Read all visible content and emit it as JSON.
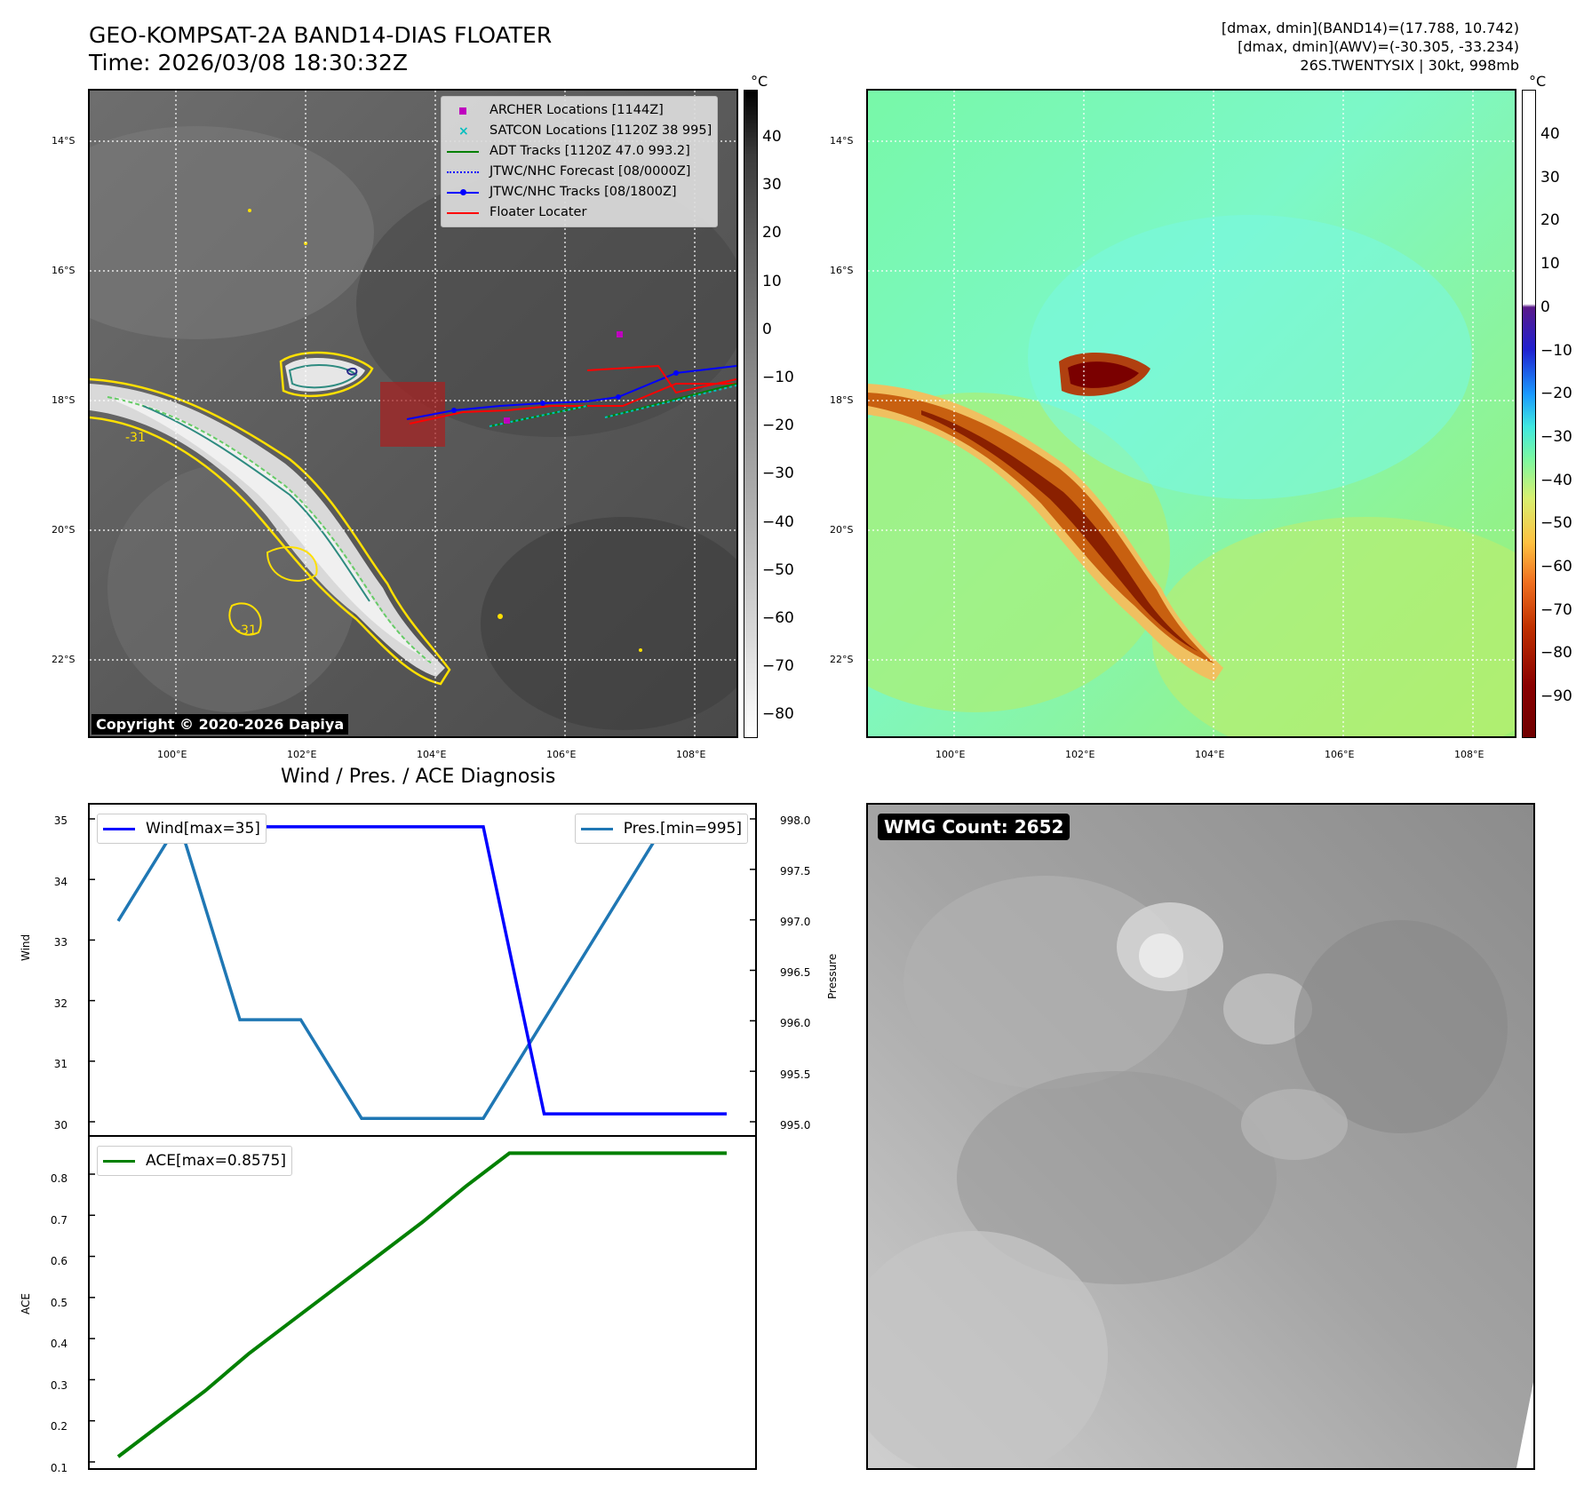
{
  "header": {
    "title_line1": "GEO-KOMPSAT-2A BAND14-DIAS FLOATER",
    "title_line2": "Time: 2026/03/08 18:30:32Z",
    "stats_line1": "[dmax, dmin](BAND14)=(17.788, 10.742)",
    "stats_line2": "[dmax, dmin](AWV)=(-30.305, -33.234)",
    "stats_line3": "26S.TWENTYSIX | 30kt, 998mb"
  },
  "map": {
    "lat_labels": [
      "14°S",
      "16°S",
      "18°S",
      "20°S",
      "22°S"
    ],
    "lon_labels": [
      "100°E",
      "102°E",
      "104°E",
      "106°E",
      "108°E"
    ],
    "copyright": "Copyright © 2020-2026 Dapiya",
    "colorbar_unit": "°C",
    "colorbar_ticks_ir": [
      "40",
      "30",
      "20",
      "10",
      "0",
      "−10",
      "−20",
      "−30",
      "−40",
      "−50",
      "−60",
      "−70",
      "−80"
    ],
    "colorbar_ticks_wv": [
      "40",
      "30",
      "20",
      "10",
      "0",
      "−10",
      "−20",
      "−30",
      "−40",
      "−50",
      "−60",
      "−70",
      "−80",
      "−90"
    ],
    "contour_label_1": "-31",
    "contour_label_2": "-31",
    "legend": [
      {
        "label": "ARCHER Locations [1144Z]",
        "color": "#bf00bf",
        "kind": "square"
      },
      {
        "label": "SATCON Locations [1120Z 38 995]",
        "color": "#00bfbf",
        "kind": "x"
      },
      {
        "label": "ADT Tracks [1120Z 47.0 993.2]",
        "color": "#008000",
        "kind": "line"
      },
      {
        "label": "JTWC/NHC Forecast [08/0000Z]",
        "color": "#0000ff",
        "kind": "dotted"
      },
      {
        "label": "JTWC/NHC Tracks [08/1800Z]",
        "color": "#0000ff",
        "kind": "line-dot"
      },
      {
        "label": "Floater Locater",
        "color": "#ff0000",
        "kind": "line"
      }
    ]
  },
  "diag": {
    "title": "Wind / Pres. / ACE Diagnosis",
    "wind_axis_label": "Wind",
    "pressure_axis_label": "Pressure",
    "ace_axis_label": "ACE",
    "wind_ticks": [
      "35",
      "34",
      "33",
      "32",
      "31",
      "30"
    ],
    "pressure_ticks": [
      "998.0",
      "997.5",
      "997.0",
      "996.5",
      "996.0",
      "995.5",
      "995.0"
    ],
    "ace_ticks": [
      "0.8",
      "0.7",
      "0.6",
      "0.5",
      "0.4",
      "0.3",
      "0.2",
      "0.1"
    ],
    "legend_wind": "Wind[max=35]",
    "legend_pres": "Pres.[min=995]",
    "legend_ace": "ACE[max=0.8575]"
  },
  "wmg": {
    "label": "WMG Count: 2652"
  },
  "chart_data": [
    {
      "type": "line",
      "series": [
        {
          "name": "Wind[max=35]",
          "color": "#0000ff",
          "axis": "Wind",
          "values": [
            35,
            35,
            35,
            35,
            35,
            35,
            35,
            30,
            30,
            30,
            30
          ]
        },
        {
          "name": "Pres.[min=995]",
          "color": "#1f77b4",
          "axis": "Pressure",
          "values": [
            997.0,
            998.0,
            996.0,
            996.0,
            995.0,
            995.0,
            995.0,
            996.0,
            997.0,
            998.0,
            998.0
          ]
        }
      ],
      "ylabel": "Wind",
      "ylabel_right": "Pressure",
      "ylim": [
        29.8,
        35.2
      ],
      "ylim_right": [
        994.93,
        998.07
      ]
    },
    {
      "type": "line",
      "series": [
        {
          "name": "ACE[max=0.8575]",
          "color": "#008000",
          "values": [
            0.12,
            0.2,
            0.28,
            0.37,
            0.45,
            0.53,
            0.61,
            0.69,
            0.777,
            0.8575,
            0.8575,
            0.8575,
            0.8575,
            0.8575,
            0.8575
          ]
        }
      ],
      "ylabel": "ACE",
      "ylim": [
        0.09,
        0.88
      ]
    }
  ]
}
